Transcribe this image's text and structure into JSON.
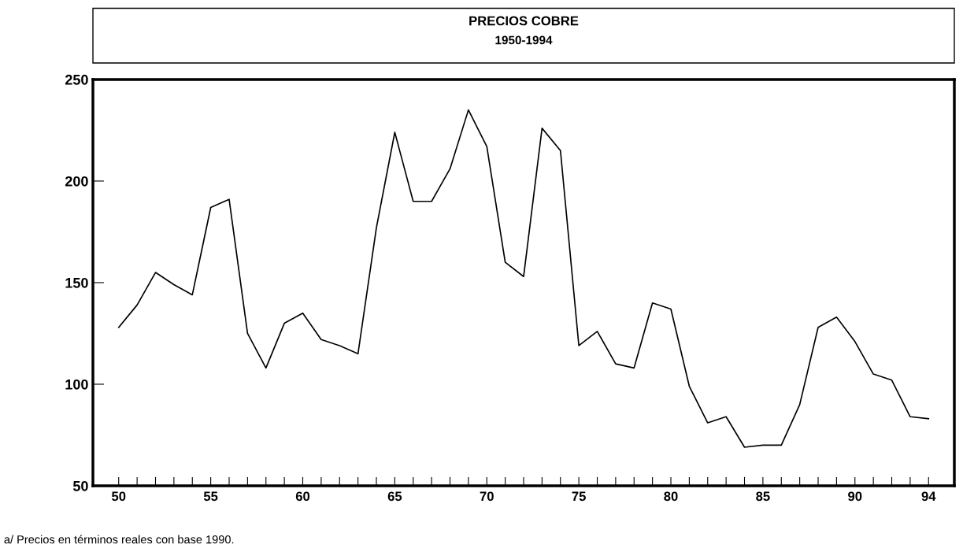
{
  "chart_data": {
    "type": "line",
    "title": "PRECIOS COBRE",
    "subtitle": "1950-1994",
    "annotations": [
      "a/ Precios en términos reales con base 1990."
    ],
    "x": [
      1950,
      1951,
      1952,
      1953,
      1954,
      1955,
      1956,
      1957,
      1958,
      1959,
      1960,
      1961,
      1962,
      1963,
      1964,
      1965,
      1966,
      1967,
      1968,
      1969,
      1970,
      1971,
      1972,
      1973,
      1974,
      1975,
      1976,
      1977,
      1978,
      1979,
      1980,
      1981,
      1982,
      1983,
      1984,
      1985,
      1986,
      1987,
      1988,
      1989,
      1990,
      1991,
      1992,
      1993,
      1994
    ],
    "series": [
      {
        "color": "#000000",
        "values": [
          128,
          139,
          155,
          149,
          144,
          187,
          191,
          125,
          108,
          130,
          135,
          122,
          119,
          115,
          177,
          224,
          190,
          190,
          206,
          235,
          217,
          160,
          153,
          226,
          215,
          119,
          126,
          110,
          108,
          140,
          137,
          99,
          81,
          84,
          69,
          70,
          70,
          90,
          128,
          133,
          121,
          105,
          102,
          84,
          83
        ]
      }
    ],
    "xlim": [
      1948.6,
      1995.4
    ],
    "xticks": [
      {
        "value": 1950,
        "label": "50"
      },
      {
        "value": 1951,
        "label": null
      },
      {
        "value": 1952,
        "label": null
      },
      {
        "value": 1953,
        "label": null
      },
      {
        "value": 1954,
        "label": null
      },
      {
        "value": 1955,
        "label": "55"
      },
      {
        "value": 1956,
        "label": null
      },
      {
        "value": 1957,
        "label": null
      },
      {
        "value": 1958,
        "label": null
      },
      {
        "value": 1959,
        "label": null
      },
      {
        "value": 1960,
        "label": "60"
      },
      {
        "value": 1961,
        "label": null
      },
      {
        "value": 1962,
        "label": null
      },
      {
        "value": 1963,
        "label": null
      },
      {
        "value": 1964,
        "label": null
      },
      {
        "value": 1965,
        "label": "65"
      },
      {
        "value": 1966,
        "label": null
      },
      {
        "value": 1967,
        "label": null
      },
      {
        "value": 1968,
        "label": null
      },
      {
        "value": 1969,
        "label": null
      },
      {
        "value": 1970,
        "label": "70"
      },
      {
        "value": 1971,
        "label": null
      },
      {
        "value": 1972,
        "label": null
      },
      {
        "value": 1973,
        "label": null
      },
      {
        "value": 1974,
        "label": null
      },
      {
        "value": 1975,
        "label": "75"
      },
      {
        "value": 1976,
        "label": null
      },
      {
        "value": 1977,
        "label": null
      },
      {
        "value": 1978,
        "label": null
      },
      {
        "value": 1979,
        "label": null
      },
      {
        "value": 1980,
        "label": "80"
      },
      {
        "value": 1981,
        "label": null
      },
      {
        "value": 1982,
        "label": null
      },
      {
        "value": 1983,
        "label": null
      },
      {
        "value": 1984,
        "label": null
      },
      {
        "value": 1985,
        "label": "85"
      },
      {
        "value": 1986,
        "label": null
      },
      {
        "value": 1987,
        "label": null
      },
      {
        "value": 1988,
        "label": null
      },
      {
        "value": 1989,
        "label": null
      },
      {
        "value": 1990,
        "label": "90"
      },
      {
        "value": 1991,
        "label": null
      },
      {
        "value": 1992,
        "label": null
      },
      {
        "value": 1993,
        "label": null
      },
      {
        "value": 1994,
        "label": "94"
      }
    ],
    "ylim": [
      50,
      250
    ],
    "yticks": [
      50,
      100,
      150,
      200,
      250
    ],
    "grid": false,
    "legend": false,
    "marker": "none",
    "line_style": "solid"
  }
}
